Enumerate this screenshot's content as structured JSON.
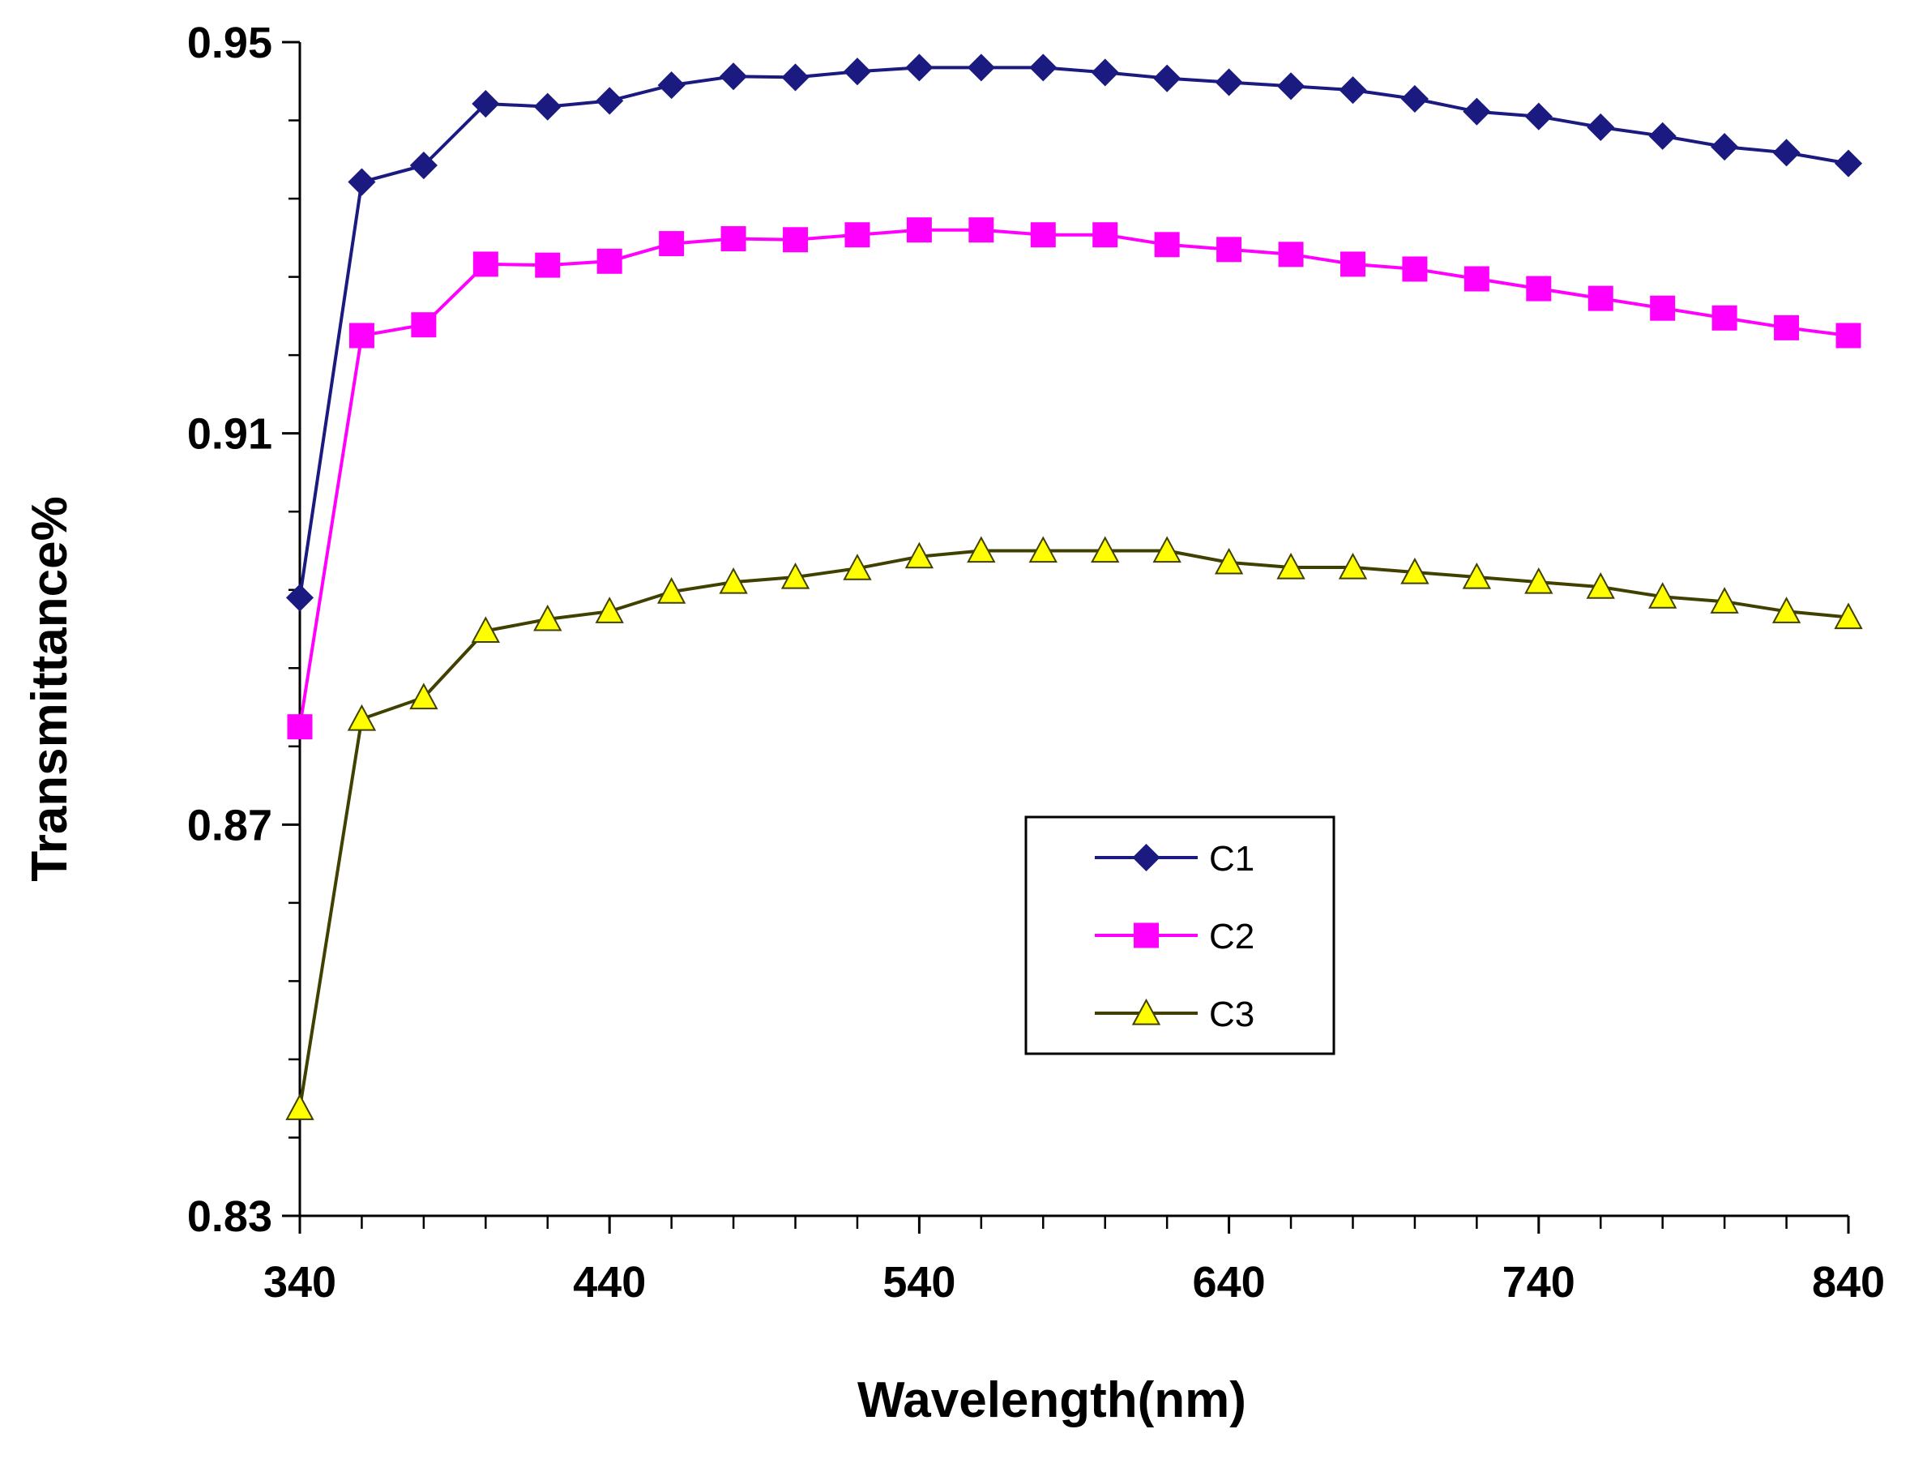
{
  "chart_data": {
    "type": "line",
    "title": "",
    "xlabel": "Wavelength(nm)",
    "ylabel": "Transmittance%",
    "xlim": [
      340,
      840
    ],
    "ylim": [
      0.83,
      0.95
    ],
    "x_ticks": [
      "340",
      "440",
      "540",
      "640",
      "740",
      "840"
    ],
    "y_ticks": [
      "0.83",
      "0.87",
      "0.91",
      "0.95"
    ],
    "y_minor_step": 0.008,
    "grid": false,
    "legend_position": "center-right",
    "x": [
      340,
      360,
      380,
      400,
      420,
      440,
      460,
      480,
      500,
      520,
      540,
      560,
      580,
      600,
      620,
      640,
      660,
      680,
      700,
      720,
      740,
      760,
      780,
      800,
      820,
      840
    ],
    "series": [
      {
        "name": "C1",
        "color": "#1a1a80",
        "marker": "diamond",
        "values": [
          0.8932,
          0.9357,
          0.9374,
          0.9437,
          0.9434,
          0.944,
          0.9456,
          0.9465,
          0.9464,
          0.947,
          0.9474,
          0.9474,
          0.9474,
          0.9469,
          0.9463,
          0.9459,
          0.9455,
          0.9451,
          0.9442,
          0.9429,
          0.9424,
          0.9413,
          0.9404,
          0.9393,
          0.9387,
          0.9376
        ]
      },
      {
        "name": "C2",
        "color": "#ff00ff",
        "marker": "square",
        "values": [
          0.88,
          0.92,
          0.9211,
          0.9273,
          0.9272,
          0.9276,
          0.9294,
          0.9299,
          0.9298,
          0.9303,
          0.9308,
          0.9308,
          0.9303,
          0.9303,
          0.9293,
          0.9288,
          0.9283,
          0.9273,
          0.9268,
          0.9258,
          0.9248,
          0.9238,
          0.9228,
          0.9218,
          0.9208,
          0.92
        ]
      },
      {
        "name": "C3",
        "color": "#404000",
        "marker": "triangle",
        "fill": "#ffff00",
        "values": [
          0.841,
          0.8808,
          0.883,
          0.8898,
          0.891,
          0.8918,
          0.8938,
          0.8948,
          0.8953,
          0.8962,
          0.8974,
          0.898,
          0.898,
          0.898,
          0.898,
          0.8968,
          0.8963,
          0.8963,
          0.8958,
          0.8953,
          0.8948,
          0.8943,
          0.8933,
          0.8928,
          0.8918,
          0.8912
        ]
      }
    ]
  }
}
